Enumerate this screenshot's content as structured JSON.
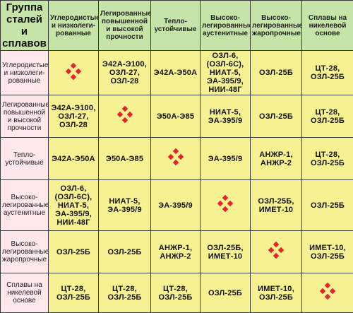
{
  "corner_label": "Группа сталей и сплавов",
  "columns": [
    "Углеродистые и низколеги-рованные",
    "Легированные повышенной и высокой прочности",
    "Тепло-устойчивые",
    "Высоко-легированные аустенитные",
    "Высоко-легированные жаропрочные",
    "Сплавы на никелевой основе"
  ],
  "rows": [
    {
      "label": "Углеродистые и низколеги-рованные",
      "cells": [
        "",
        "Э42А-Э100,\nОЗЛ-27,\nОЗЛ-28",
        "Э42А-Э50А",
        "ОЗЛ-6,\n(ОЗЛ-6С),\nНИАТ-5,\nЭА-395/9,\nНИИ-48Г",
        "ОЗЛ-25Б",
        "ЦТ-28,\nОЗЛ-25Б"
      ]
    },
    {
      "label": "Легированные повышенной и высокой прочности",
      "cells": [
        "Э42А-Э100,\nОЗЛ-27,\nОЗЛ-28",
        "",
        "Э50А-Э85",
        "НИАТ-5,\nЭА-395/9",
        "ОЗЛ-25Б",
        "ЦТ-28,\nОЗЛ-25Б"
      ]
    },
    {
      "label": "Тепло-устойчивые",
      "cells": [
        "Э42А-Э50А",
        "Э50А-Э85",
        "",
        "ЭА-395/9",
        "АНЖР-1,\nАНЖР-2",
        "ЦТ-28,\nОЗЛ-25Б"
      ]
    },
    {
      "label": "Высоко-легированные аустенитные",
      "cells": [
        "ОЗЛ-6,\n(ОЗЛ-6С),\nНИАТ-5,\nЭА-395/9,\nНИИ-48Г",
        "НИАТ-5,\nЭА-395/9",
        "ЭА-395/9",
        "",
        "ОЗЛ-25Б,\nИМЕТ-10",
        "ОЗЛ-25Б"
      ]
    },
    {
      "label": "Высоко-легированные жаропрочные",
      "cells": [
        "ОЗЛ-25Б",
        "ОЗЛ-25Б",
        "АНЖР-1,\nАНЖР-2",
        "ОЗЛ-25Б,\nИМЕТ-10",
        "",
        "ИМЕТ-10,\nОЗЛ-25Б"
      ]
    },
    {
      "label": "Сплавы на никелевой основе",
      "cells": [
        "ЦТ-28,\nОЗЛ-25Б",
        "ЦТ-28,\nОЗЛ-25Б",
        "ЦТ-28,\nОЗЛ-25Б",
        "ОЗЛ-25Б",
        "ИМЕТ-10,\nОЗЛ-25Б",
        ""
      ]
    }
  ],
  "colors": {
    "header_green": "#c6e3a8",
    "row_pink": "#ffe7ee",
    "cell_yellow": "#f6f294",
    "cell_gold": "#f5da6a",
    "diamond_red": "#e3262d"
  }
}
